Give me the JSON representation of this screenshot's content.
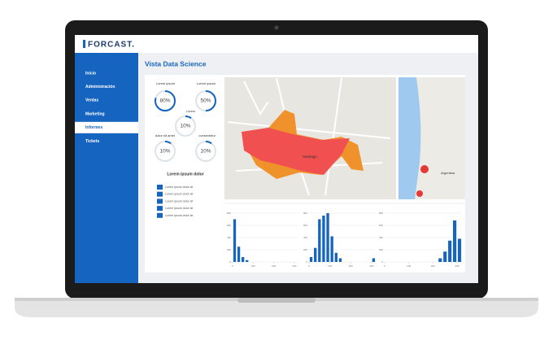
{
  "logo": "FORCAST.",
  "sidebar": {
    "items": [
      "Inicio",
      "Administración",
      "Ventas",
      "Marketing",
      "Informes",
      "Tickets"
    ],
    "active": 4
  },
  "page_title": "Vista Data Science",
  "gauges": [
    {
      "label": "Lorem ipsum",
      "value": 80,
      "value_label": "80%"
    },
    {
      "label": "Lorem ipsum",
      "value": 50,
      "value_label": "50%"
    },
    {
      "label": "Lorem",
      "value": 10,
      "value_label": "10%"
    },
    {
      "label": "dolor sit amet",
      "value": 10,
      "value_label": "10%"
    },
    {
      "label": "consectetur",
      "value": 10,
      "value_label": "10%"
    }
  ],
  "list": {
    "title": "Lorem ipsum dolor",
    "items": [
      "Lorem ipsum dolor sit",
      "Lorem ipsum dolor sit",
      "Lorem ipsum dolor sit",
      "Lorem ipsum dolor sit",
      "Lorem ipsum dolor sit"
    ]
  },
  "map": {
    "labels": [
      "Santiago",
      "Argentina"
    ]
  },
  "charts": [
    {
      "type": "bar",
      "color": "#1565c0",
      "xlim": [
        0,
        320
      ],
      "ylim": [
        0,
        800
      ],
      "xticks": [
        0,
        100,
        200,
        300
      ],
      "yticks": [
        0,
        200,
        400,
        600,
        800
      ],
      "values": [
        700,
        250,
        80,
        30,
        0,
        0,
        0,
        0,
        0,
        0,
        0,
        0,
        0,
        0,
        0,
        0
      ]
    },
    {
      "type": "bar",
      "color": "#1565c0",
      "xlim": [
        0,
        320
      ],
      "ylim": [
        0,
        800
      ],
      "xticks": [
        0,
        100,
        200,
        300
      ],
      "yticks": [
        0,
        200,
        400,
        600,
        800
      ],
      "values": [
        80,
        230,
        700,
        760,
        800,
        420,
        150,
        60,
        0,
        0,
        0,
        0,
        0,
        0,
        0,
        60
      ]
    },
    {
      "type": "bar",
      "color": "#1565c0",
      "xlim": [
        0,
        320
      ],
      "ylim": [
        0,
        800
      ],
      "xticks": [
        0,
        100,
        200,
        300
      ],
      "yticks": [
        0,
        200,
        400,
        600,
        800
      ],
      "values": [
        0,
        0,
        0,
        0,
        0,
        0,
        0,
        0,
        0,
        0,
        0,
        60,
        170,
        350,
        680,
        380
      ]
    }
  ]
}
